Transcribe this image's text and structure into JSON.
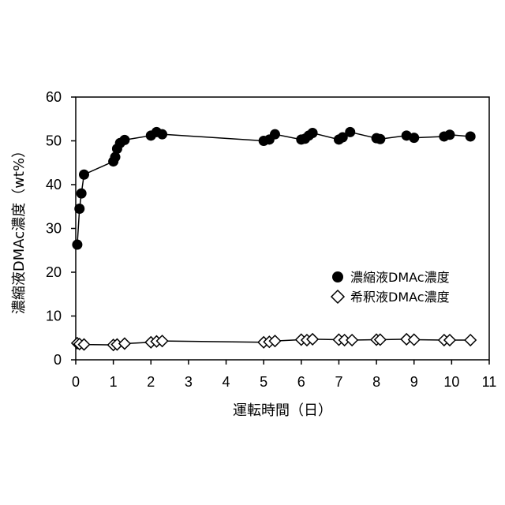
{
  "chart_data": {
    "type": "line",
    "xlabel": "運転時間（日）",
    "ylabel": "濃縮液DMAc濃度（wt%）",
    "xlim": [
      0,
      11
    ],
    "ylim": [
      0,
      60
    ],
    "xticks": [
      0,
      1,
      2,
      3,
      4,
      5,
      6,
      7,
      8,
      9,
      10,
      11
    ],
    "yticks": [
      0,
      10,
      20,
      30,
      40,
      50,
      60
    ],
    "grid": false,
    "legend_position": "right-middle",
    "series": [
      {
        "name": "濃縮液DMAc濃度",
        "marker": "filled-circle",
        "color": "#000000",
        "x": [
          0.04,
          0.1,
          0.15,
          0.22,
          1.0,
          1.05,
          1.1,
          1.18,
          1.3,
          2.0,
          2.15,
          2.3,
          5.0,
          5.15,
          5.3,
          6.0,
          6.1,
          6.2,
          6.3,
          7.0,
          7.1,
          7.3,
          8.0,
          8.1,
          8.8,
          9.0,
          9.8,
          9.95,
          10.5
        ],
        "y": [
          26.3,
          34.5,
          38.0,
          42.3,
          45.3,
          46.3,
          48.2,
          49.5,
          50.2,
          51.2,
          52.0,
          51.5,
          50.0,
          50.3,
          51.5,
          50.3,
          50.5,
          51.2,
          51.8,
          50.3,
          50.8,
          52.0,
          50.6,
          50.4,
          51.2,
          50.7,
          51.0,
          51.4,
          51.0
        ]
      },
      {
        "name": "希釈液DMAc濃度",
        "marker": "open-diamond",
        "color": "#000000",
        "x": [
          0.04,
          0.1,
          0.22,
          1.0,
          1.1,
          1.3,
          2.0,
          2.15,
          2.3,
          5.0,
          5.15,
          5.3,
          6.0,
          6.15,
          6.3,
          7.0,
          7.15,
          7.35,
          8.0,
          8.1,
          8.8,
          9.0,
          9.8,
          9.95,
          10.5
        ],
        "y": [
          3.8,
          3.6,
          3.5,
          3.4,
          3.5,
          3.7,
          4.0,
          4.2,
          4.3,
          4.0,
          4.1,
          4.3,
          4.6,
          4.5,
          4.7,
          4.6,
          4.5,
          4.5,
          4.6,
          4.6,
          4.7,
          4.6,
          4.5,
          4.5,
          4.5
        ]
      }
    ]
  }
}
